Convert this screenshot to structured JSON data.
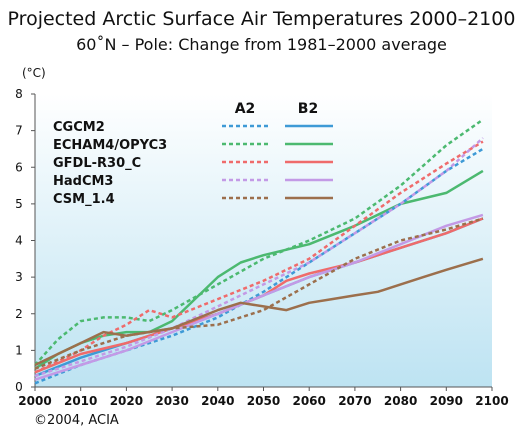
{
  "chart_data": {
    "type": "line",
    "title": "Projected Arctic Surface Air Temperatures 2000–2100",
    "subtitle": "60˚N – Pole: Change from 1981–2000 average",
    "ylabel": "(°C)",
    "xlim": [
      2000,
      2100
    ],
    "ylim": [
      0,
      8
    ],
    "xticks": [
      2000,
      2010,
      2020,
      2030,
      2040,
      2050,
      2060,
      2070,
      2080,
      2090,
      2100
    ],
    "yticks": [
      0,
      1,
      2,
      3,
      4,
      5,
      6,
      7,
      8
    ],
    "grid": false,
    "legend_position": "top-left",
    "legend_headers": [
      "A2",
      "B2"
    ],
    "background_gradient": [
      "#ffffff",
      "#bde3f2"
    ],
    "models": [
      {
        "name": "CGCM2",
        "color": "#3e9ad6",
        "a2": {
          "x": [
            2000,
            2010,
            2020,
            2030,
            2040,
            2050,
            2060,
            2070,
            2080,
            2090,
            2098
          ],
          "y": [
            0.1,
            0.6,
            1.0,
            1.4,
            1.9,
            2.6,
            3.4,
            4.2,
            5.0,
            5.9,
            6.5
          ]
        },
        "b2": {
          "x": [
            2000,
            2010,
            2020,
            2030,
            2040,
            2050,
            2060,
            2070,
            2080,
            2090,
            2098
          ],
          "y": [
            0.3,
            0.8,
            1.2,
            1.6,
            2.0,
            2.5,
            3.0,
            3.4,
            3.8,
            4.2,
            4.6
          ]
        }
      },
      {
        "name": "ECHAM4/OPYC3",
        "color": "#4cb970",
        "a2": {
          "x": [
            2000,
            2005,
            2010,
            2015,
            2020,
            2025,
            2030,
            2040,
            2050,
            2060,
            2070,
            2080,
            2090,
            2098
          ],
          "y": [
            0.6,
            1.3,
            1.8,
            1.9,
            1.9,
            1.8,
            2.1,
            2.8,
            3.5,
            4.0,
            4.6,
            5.5,
            6.6,
            7.3
          ]
        },
        "b2": {
          "x": [
            2000,
            2005,
            2010,
            2015,
            2020,
            2025,
            2030,
            2035,
            2040,
            2045,
            2050,
            2060,
            2070,
            2080,
            2090,
            2098
          ],
          "y": [
            0.5,
            0.9,
            1.2,
            1.4,
            1.5,
            1.5,
            1.8,
            2.4,
            3.0,
            3.4,
            3.6,
            3.9,
            4.4,
            5.0,
            5.3,
            5.9
          ]
        }
      },
      {
        "name": "GFDL-R30_C",
        "color": "#ef6b6b",
        "a2": {
          "x": [
            2000,
            2005,
            2010,
            2015,
            2020,
            2025,
            2030,
            2040,
            2050,
            2060,
            2070,
            2080,
            2090,
            2098
          ],
          "y": [
            0.4,
            0.7,
            1.0,
            1.4,
            1.7,
            2.1,
            1.9,
            2.4,
            2.9,
            3.5,
            4.4,
            5.3,
            6.1,
            6.7
          ]
        },
        "b2": {
          "x": [
            2000,
            2010,
            2020,
            2030,
            2040,
            2050,
            2055,
            2060,
            2070,
            2080,
            2090,
            2098
          ],
          "y": [
            0.4,
            0.9,
            1.2,
            1.6,
            2.0,
            2.5,
            2.9,
            3.1,
            3.4,
            3.8,
            4.2,
            4.6
          ]
        }
      },
      {
        "name": "HadCM3",
        "color": "#c39ae6",
        "a2": {
          "x": [
            2000,
            2010,
            2020,
            2030,
            2040,
            2050,
            2060,
            2070,
            2080,
            2090,
            2098
          ],
          "y": [
            0.3,
            0.7,
            1.1,
            1.6,
            2.2,
            2.8,
            3.4,
            4.2,
            5.0,
            5.9,
            6.8
          ]
        },
        "b2": {
          "x": [
            2000,
            2010,
            2020,
            2030,
            2040,
            2050,
            2060,
            2070,
            2080,
            2090,
            2098
          ],
          "y": [
            0.2,
            0.6,
            1.0,
            1.5,
            2.0,
            2.5,
            3.0,
            3.4,
            3.9,
            4.4,
            4.7
          ]
        }
      },
      {
        "name": "CSM_1.4",
        "color": "#9c6f4c",
        "a2": {
          "x": [
            2000,
            2010,
            2020,
            2030,
            2040,
            2050,
            2060,
            2070,
            2080,
            2090,
            2098
          ],
          "y": [
            0.5,
            1.0,
            1.4,
            1.6,
            1.7,
            2.1,
            2.8,
            3.5,
            4.0,
            4.3,
            4.6
          ]
        },
        "b2": {
          "x": [
            2000,
            2005,
            2010,
            2015,
            2020,
            2030,
            2040,
            2045,
            2050,
            2055,
            2060,
            2065,
            2070,
            2075,
            2080,
            2085,
            2090,
            2098
          ],
          "y": [
            0.6,
            0.9,
            1.2,
            1.5,
            1.4,
            1.6,
            2.1,
            2.3,
            2.2,
            2.1,
            2.3,
            2.4,
            2.5,
            2.6,
            2.8,
            3.0,
            3.2,
            3.5
          ]
        }
      }
    ]
  },
  "footer": {
    "copyright": "©2004, ACIA"
  }
}
